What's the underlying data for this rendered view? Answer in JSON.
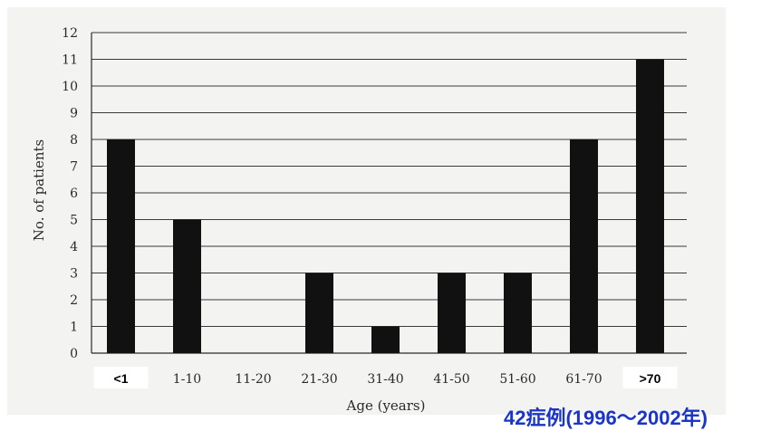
{
  "chart_data": {
    "type": "bar",
    "categories": [
      "<1",
      "1-10",
      "11-20",
      "21-30",
      "31-40",
      "41-50",
      "51-60",
      "61-70",
      ">70"
    ],
    "values": [
      8,
      5,
      0,
      3,
      1,
      3,
      3,
      8,
      11
    ],
    "highlighted_categories": [
      "<1",
      ">70"
    ],
    "xlabel": "Age (years)",
    "ylabel": "No. of patients",
    "ylim": [
      0,
      12
    ],
    "yticks": [
      0,
      1,
      2,
      3,
      4,
      5,
      6,
      7,
      8,
      9,
      10,
      11,
      12
    ],
    "grid": true,
    "bar_color": "#111111",
    "annotation": "42症例(1996～2002年)",
    "annotation_color": "#1a35c8"
  }
}
